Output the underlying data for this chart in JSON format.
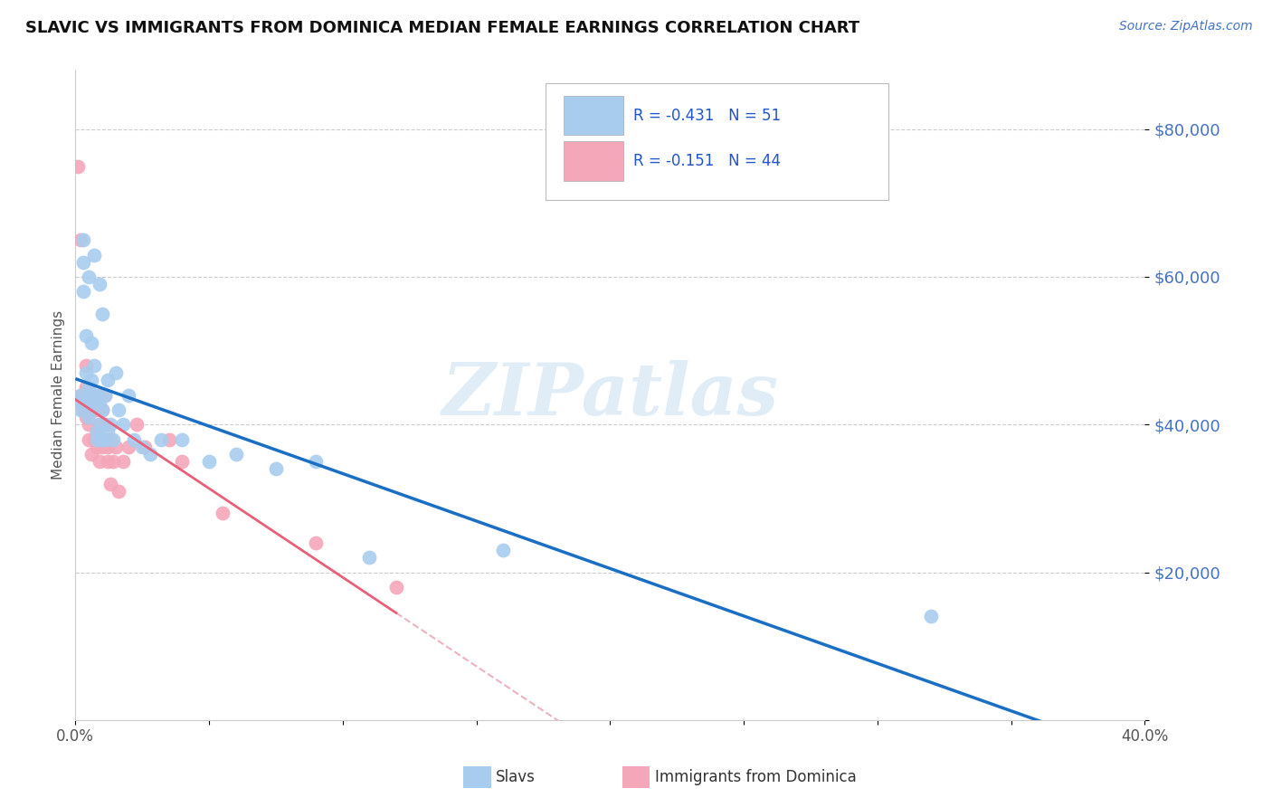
{
  "title": "SLAVIC VS IMMIGRANTS FROM DOMINICA MEDIAN FEMALE EARNINGS CORRELATION CHART",
  "source": "Source: ZipAtlas.com",
  "ylabel": "Median Female Earnings",
  "legend_label1": "Slavs",
  "legend_label2": "Immigrants from Dominica",
  "r1": -0.431,
  "n1": 51,
  "r2": -0.151,
  "n2": 44,
  "xmin": 0.0,
  "xmax": 0.4,
  "ymin": 0,
  "ymax": 88000,
  "yticks": [
    0,
    20000,
    40000,
    60000,
    80000
  ],
  "ytick_labels": [
    "",
    "$20,000",
    "$40,000",
    "$60,000",
    "$80,000"
  ],
  "xticks": [
    0.0,
    0.05,
    0.1,
    0.15,
    0.2,
    0.25,
    0.3,
    0.35,
    0.4
  ],
  "xtick_labels": [
    "0.0%",
    "",
    "",
    "",
    "",
    "",
    "",
    "",
    "40.0%"
  ],
  "color_slavs": "#a8ccee",
  "color_dominica": "#f4a7b9",
  "color_line_slavs": "#1a6fc4",
  "color_line_dominica": "#e8607a",
  "color_line_dominica_dash": "#e8a0b0",
  "background_color": "#ffffff",
  "slavs_x": [
    0.001,
    0.002,
    0.002,
    0.003,
    0.003,
    0.003,
    0.004,
    0.004,
    0.004,
    0.005,
    0.005,
    0.005,
    0.005,
    0.006,
    0.006,
    0.006,
    0.007,
    0.007,
    0.007,
    0.007,
    0.008,
    0.008,
    0.008,
    0.009,
    0.009,
    0.009,
    0.01,
    0.01,
    0.01,
    0.011,
    0.011,
    0.012,
    0.012,
    0.013,
    0.014,
    0.015,
    0.016,
    0.018,
    0.02,
    0.022,
    0.025,
    0.028,
    0.032,
    0.04,
    0.05,
    0.06,
    0.075,
    0.09,
    0.11,
    0.16,
    0.32
  ],
  "slavs_y": [
    43000,
    42000,
    44000,
    62000,
    58000,
    65000,
    47000,
    43000,
    52000,
    44000,
    45000,
    41000,
    60000,
    46000,
    51000,
    43000,
    44000,
    63000,
    48000,
    43000,
    39000,
    44000,
    38000,
    40000,
    43000,
    59000,
    42000,
    38000,
    55000,
    38000,
    44000,
    39000,
    46000,
    40000,
    38000,
    47000,
    42000,
    40000,
    44000,
    38000,
    37000,
    36000,
    38000,
    38000,
    35000,
    36000,
    34000,
    35000,
    22000,
    23000,
    14000
  ],
  "dominica_x": [
    0.001,
    0.002,
    0.002,
    0.003,
    0.003,
    0.004,
    0.004,
    0.004,
    0.005,
    0.005,
    0.005,
    0.006,
    0.006,
    0.006,
    0.007,
    0.007,
    0.007,
    0.008,
    0.008,
    0.008,
    0.009,
    0.009,
    0.009,
    0.01,
    0.01,
    0.01,
    0.011,
    0.011,
    0.012,
    0.012,
    0.013,
    0.013,
    0.014,
    0.015,
    0.016,
    0.018,
    0.02,
    0.023,
    0.026,
    0.035,
    0.04,
    0.055,
    0.09,
    0.12
  ],
  "dominica_y": [
    75000,
    65000,
    44000,
    43000,
    42000,
    41000,
    48000,
    45000,
    38000,
    43000,
    40000,
    44000,
    42000,
    36000,
    38000,
    43000,
    38000,
    39000,
    42000,
    37000,
    40000,
    44000,
    35000,
    37000,
    42000,
    38000,
    40000,
    44000,
    35000,
    37000,
    38000,
    32000,
    35000,
    37000,
    31000,
    35000,
    37000,
    40000,
    37000,
    38000,
    35000,
    28000,
    24000,
    18000
  ]
}
